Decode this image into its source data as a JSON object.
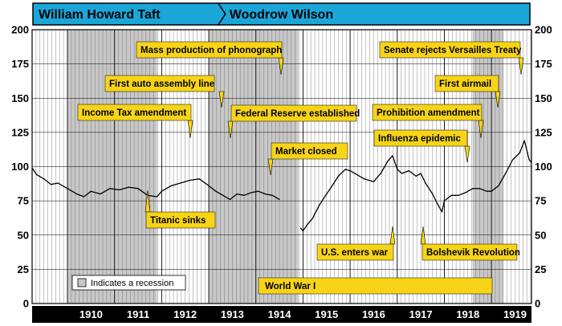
{
  "presidents": [
    {
      "name": "William Howard Taft",
      "color": "#1aa6d8"
    },
    {
      "name": "Woodrow Wilson",
      "color": "#1aa6d8"
    }
  ],
  "legend": {
    "label": "Indicates a recession",
    "swatch_color": "#c8c8c8"
  },
  "colors": {
    "plot_bg": "#ffffff",
    "recession": "#c8c8c8",
    "annotation": "#f7d417",
    "xaxis_band": "#000000",
    "line": "#000000"
  },
  "chart_data": {
    "type": "line",
    "title": "",
    "xlabel": "",
    "ylabel": "",
    "xlim": [
      1909.25,
      1919.85
    ],
    "ylim": [
      0,
      200
    ],
    "yticks": [
      0,
      25,
      50,
      75,
      100,
      125,
      150,
      175,
      200
    ],
    "xtick_labels": [
      "1910",
      "1911",
      "1912",
      "1913",
      "1914",
      "1915",
      "1916",
      "1917",
      "1918",
      "1919"
    ],
    "grid": true,
    "recessions": [
      [
        1910.0,
        1911.9
      ],
      [
        1913.0,
        1914.9
      ],
      [
        1918.6,
        1919.25
      ]
    ],
    "presidencies": [
      {
        "name": "William Howard Taft",
        "start": 1909.25,
        "end": 1913.2
      },
      {
        "name": "Woodrow Wilson",
        "start": 1913.2,
        "end": 1919.85
      }
    ],
    "market_closed": [
      1914.55,
      1914.9
    ],
    "series": [
      {
        "points": [
          [
            1909.25,
            99
          ],
          [
            1909.35,
            94
          ],
          [
            1909.5,
            91
          ],
          [
            1909.65,
            87
          ],
          [
            1909.8,
            88
          ],
          [
            1910.0,
            84
          ],
          [
            1910.2,
            80
          ],
          [
            1910.35,
            78
          ],
          [
            1910.5,
            82
          ],
          [
            1910.7,
            80
          ],
          [
            1910.9,
            84
          ],
          [
            1911.1,
            83
          ],
          [
            1911.3,
            85
          ],
          [
            1911.5,
            84
          ],
          [
            1911.7,
            79
          ],
          [
            1911.9,
            78
          ],
          [
            1912.0,
            82
          ],
          [
            1912.2,
            86
          ],
          [
            1912.4,
            88
          ],
          [
            1912.6,
            90
          ],
          [
            1912.8,
            91
          ],
          [
            1913.0,
            86
          ],
          [
            1913.15,
            82
          ],
          [
            1913.3,
            79
          ],
          [
            1913.45,
            76
          ],
          [
            1913.6,
            80
          ],
          [
            1913.75,
            79
          ],
          [
            1913.9,
            81
          ],
          [
            1914.05,
            82
          ],
          [
            1914.2,
            80
          ],
          [
            1914.35,
            79
          ],
          [
            1914.5,
            76
          ],
          null,
          [
            1914.95,
            55
          ],
          [
            1915.0,
            53
          ],
          [
            1915.1,
            58
          ],
          [
            1915.2,
            62
          ],
          [
            1915.35,
            72
          ],
          [
            1915.5,
            80
          ],
          [
            1915.6,
            85
          ],
          [
            1915.75,
            93
          ],
          [
            1915.9,
            98
          ],
          [
            1916.0,
            97
          ],
          [
            1916.15,
            94
          ],
          [
            1916.3,
            91
          ],
          [
            1916.5,
            89
          ],
          [
            1916.65,
            95
          ],
          [
            1916.8,
            104
          ],
          [
            1916.9,
            108
          ],
          [
            1917.0,
            98
          ],
          [
            1917.1,
            95
          ],
          [
            1917.25,
            97
          ],
          [
            1917.4,
            93
          ],
          [
            1917.5,
            95
          ],
          [
            1917.6,
            88
          ],
          [
            1917.75,
            80
          ],
          [
            1917.85,
            73
          ],
          [
            1917.95,
            67
          ],
          [
            1918.0,
            75
          ],
          [
            1918.15,
            79
          ],
          [
            1918.3,
            79
          ],
          [
            1918.45,
            81
          ],
          [
            1918.6,
            84
          ],
          [
            1918.75,
            84
          ],
          [
            1918.9,
            82
          ],
          [
            1919.0,
            82
          ],
          [
            1919.15,
            86
          ],
          [
            1919.3,
            95
          ],
          [
            1919.45,
            105
          ],
          [
            1919.6,
            110
          ],
          [
            1919.7,
            119
          ],
          [
            1919.8,
            105
          ],
          [
            1919.85,
            103
          ]
        ]
      }
    ],
    "annotations": [
      {
        "text": "Income Tax amendment",
        "x": 1912.9
      },
      {
        "text": "First auto assembly line",
        "x": 1913.5
      },
      {
        "text": "Mass production of phonograph",
        "x": 1914.9
      },
      {
        "text": "Titanic sinks",
        "x": 1912.3
      },
      {
        "text": "Federal Reserve established",
        "x": 1913.75
      },
      {
        "text": "Market closed",
        "x": 1914.6
      },
      {
        "text": "World War I",
        "x": 1914.55
      },
      {
        "text": "U.S. enters war",
        "x": 1917.25
      },
      {
        "text": "Senate rejects Versailles Treaty",
        "x": 1919.75
      },
      {
        "text": "First airmail",
        "x": 1919.4
      },
      {
        "text": "Prohibition amendment",
        "x": 1918.95
      },
      {
        "text": "Influenza epidemic",
        "x": 1918.5
      },
      {
        "text": "Bolshevik Revolution",
        "x": 1917.8
      }
    ]
  }
}
